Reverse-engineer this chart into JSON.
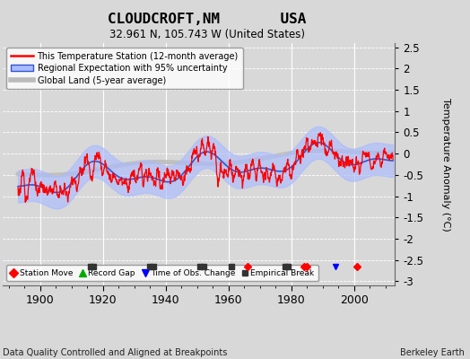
{
  "title": "CLOUDCROFT,NM       USA",
  "subtitle": "32.961 N, 105.743 W (United States)",
  "ylabel": "Temperature Anomaly (°C)",
  "xlabel_bottom": "Data Quality Controlled and Aligned at Breakpoints",
  "xlabel_right": "Berkeley Earth",
  "ylim": [
    -3.1,
    2.6
  ],
  "yticks": [
    -3,
    -2.5,
    -2,
    -1.5,
    -1,
    -0.5,
    0,
    0.5,
    1,
    1.5,
    2,
    2.5
  ],
  "xlim": [
    1888,
    2013
  ],
  "xticks": [
    1900,
    1920,
    1940,
    1960,
    1980,
    2000
  ],
  "bg_color": "#d8d8d8",
  "plot_bg_color": "#d8d8d8",
  "station_moves": [
    1966,
    1984,
    1985,
    2001
  ],
  "empirical_breaks": [
    1916,
    1917,
    1935,
    1936,
    1951,
    1952,
    1961,
    1978,
    1979
  ],
  "time_of_obs": [
    1994
  ],
  "red_line_color": "#ff0000",
  "blue_band_color": "#aabbff",
  "blue_line_color": "#3355cc",
  "gray_line_color": "#bbbbbb",
  "grid_color": "#ffffff",
  "white_bg": "#ffffff"
}
